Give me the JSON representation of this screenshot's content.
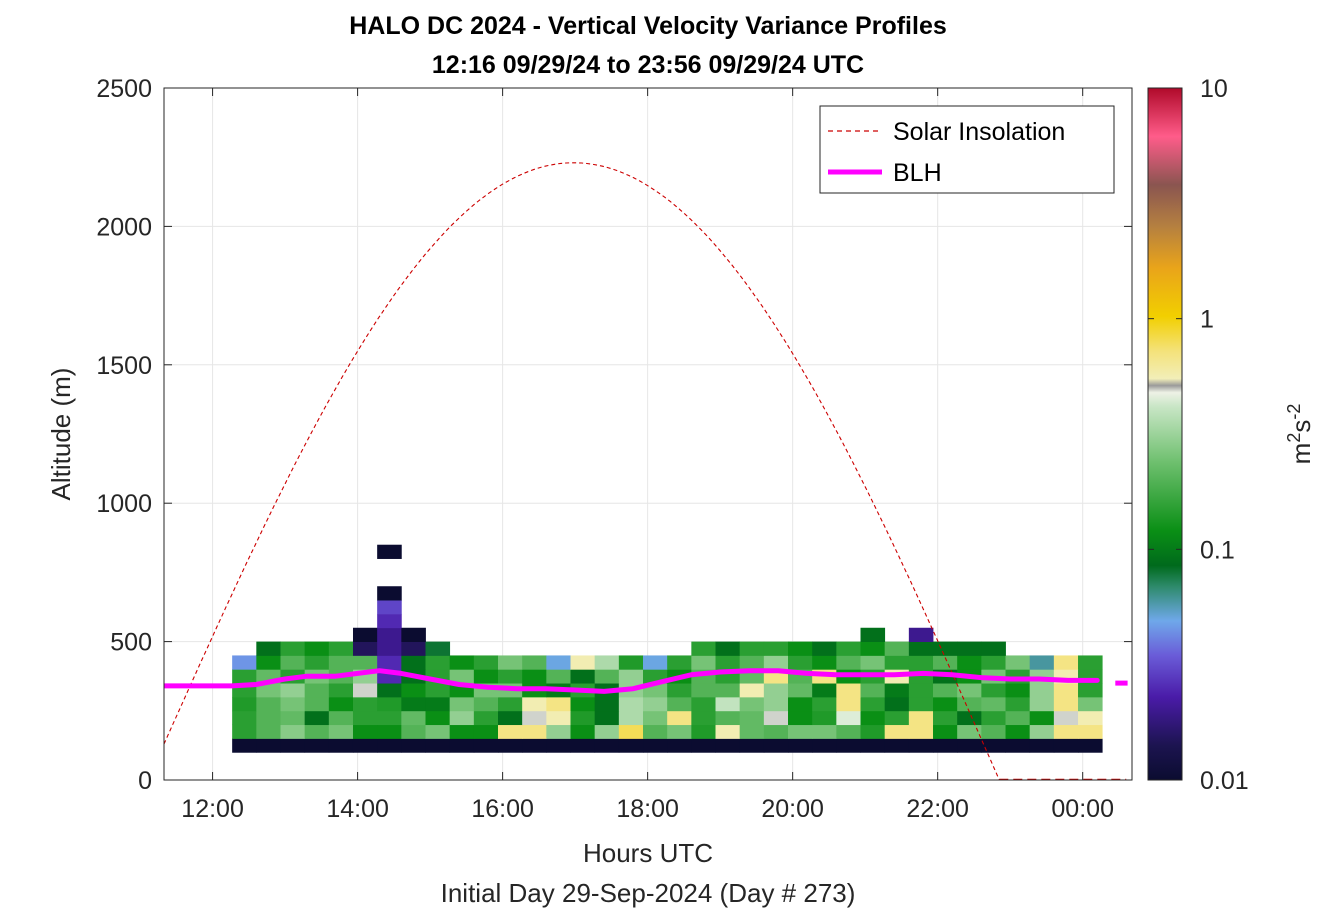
{
  "chart_data": {
    "type": "heatmap",
    "title": "HALO DC 2024 - Vertical Velocity Variance Profiles",
    "subtitle": "12:16 09/29/24 to 23:56 09/29/24  UTC",
    "xlabel": "Hours UTC",
    "footer": "Initial Day 29-Sep-2024 (Day # 273)",
    "ylabel": "Altitude (m)",
    "xlim": [
      11.33,
      24.68
    ],
    "ylim": [
      0,
      2500
    ],
    "x_ticks": [
      {
        "value": 12,
        "label": "12:00"
      },
      {
        "value": 14,
        "label": "14:00"
      },
      {
        "value": 16,
        "label": "16:00"
      },
      {
        "value": 18,
        "label": "18:00"
      },
      {
        "value": 20,
        "label": "20:00"
      },
      {
        "value": 22,
        "label": "22:00"
      },
      {
        "value": 24,
        "label": "00:00"
      }
    ],
    "y_ticks": [
      {
        "value": 0,
        "label": "0"
      },
      {
        "value": 500,
        "label": "500"
      },
      {
        "value": 1000,
        "label": "1000"
      },
      {
        "value": 1500,
        "label": "1500"
      },
      {
        "value": 2000,
        "label": "2000"
      },
      {
        "value": 2500,
        "label": "2500"
      }
    ],
    "grid": true,
    "legend": {
      "placement": "top-right",
      "entries": [
        "Solar Insolation",
        "BLH"
      ]
    },
    "colorbar": {
      "label_base": "m",
      "label_sup1": "2",
      "label_mid": "s",
      "label_sup2": "-2",
      "scale": "log",
      "range": [
        0.01,
        10
      ],
      "ticks": [
        {
          "value": 0.01,
          "label": "0.01"
        },
        {
          "value": 0.1,
          "label": "0.1"
        },
        {
          "value": 1,
          "label": "1"
        },
        {
          "value": 10,
          "label": "10"
        }
      ]
    },
    "heatmap": {
      "t_start": 12.27,
      "t_step": 0.3333,
      "alt_start": 100,
      "alt_step": 50,
      "bottom_row_note": "lowest gate 100-150 m",
      "rows": [
        [
          0.01,
          0.01,
          0.01,
          0.01,
          0.01,
          0.01,
          0.01,
          0.01,
          0.01,
          0.01,
          0.01,
          0.01,
          0.01,
          0.01,
          0.01,
          0.01,
          0.01,
          0.01,
          0.01,
          0.01,
          0.01,
          0.01,
          0.01,
          0.01,
          0.01,
          0.01,
          0.01,
          0.01,
          0.01,
          0.01,
          0.01,
          0.01,
          0.01,
          0.01,
          0.01,
          0.01
        ],
        [
          0.15,
          0.2,
          0.28,
          0.2,
          0.25,
          0.12,
          0.12,
          0.2,
          0.25,
          0.12,
          0.12,
          0.7,
          0.7,
          0.3,
          0.12,
          0.3,
          0.8,
          0.2,
          0.25,
          0.14,
          0.6,
          0.22,
          0.2,
          0.25,
          0.25,
          0.2,
          0.14,
          0.7,
          0.7,
          0.12,
          0.25,
          0.2,
          0.12,
          0.3,
          0.7,
          0.7
        ],
        [
          0.15,
          0.2,
          0.22,
          0.09,
          0.2,
          0.15,
          0.15,
          0.22,
          0.12,
          0.3,
          0.15,
          0.09,
          0.5,
          0.6,
          0.14,
          0.09,
          0.35,
          0.25,
          0.7,
          0.15,
          0.2,
          0.22,
          0.5,
          0.12,
          0.14,
          0.45,
          0.12,
          0.15,
          0.7,
          0.15,
          0.09,
          0.15,
          0.2,
          0.12,
          0.5,
          0.6
        ],
        [
          0.14,
          0.2,
          0.25,
          0.2,
          0.12,
          0.15,
          0.14,
          0.1,
          0.1,
          0.25,
          0.2,
          0.15,
          0.6,
          0.7,
          0.12,
          0.09,
          0.35,
          0.3,
          0.2,
          0.15,
          0.4,
          0.25,
          0.3,
          0.12,
          0.15,
          0.7,
          0.15,
          0.09,
          0.15,
          0.12,
          0.2,
          0.22,
          0.15,
          0.3,
          0.7,
          0.25
        ],
        [
          0.15,
          0.25,
          0.3,
          0.2,
          0.15,
          0.5,
          0.09,
          0.12,
          0.15,
          0.12,
          0.25,
          0.25,
          0.12,
          0.1,
          0.15,
          0.09,
          0.3,
          0.25,
          0.15,
          0.2,
          0.2,
          0.6,
          0.3,
          0.22,
          0.1,
          0.7,
          0.2,
          0.1,
          0.15,
          0.2,
          0.25,
          0.15,
          0.12,
          0.3,
          0.7,
          0.15
        ],
        [
          0.15,
          0.22,
          0.15,
          0.25,
          0.2,
          0.3,
          0.025,
          0.09,
          0.15,
          0.25,
          0.12,
          0.15,
          0.12,
          0.2,
          0.09,
          0.2,
          0.3,
          0.15,
          0.12,
          0.2,
          0.15,
          0.22,
          0.7,
          0.2,
          0.7,
          0.12,
          0.15,
          0.6,
          0.15,
          0.09,
          0.12,
          0.25,
          0.15,
          0.3,
          0.6,
          0.15
        ],
        [
          0.045,
          0.12,
          0.2,
          0.15,
          0.2,
          0.2,
          0.025,
          0.09,
          0.15,
          0.12,
          0.15,
          0.25,
          0.2,
          0.05,
          0.6,
          0.35,
          0.14,
          0.05,
          0.15,
          0.25,
          0.15,
          0.2,
          0.3,
          0.15,
          0.12,
          0.2,
          0.25,
          0.15,
          0.15,
          0.2,
          0.12,
          0.15,
          0.25,
          0.06,
          0.7,
          0.15
        ],
        [
          null,
          0.09,
          0.15,
          0.12,
          0.15,
          0.015,
          0.02,
          0.015,
          0.08,
          null,
          null,
          null,
          null,
          null,
          null,
          null,
          null,
          null,
          null,
          0.15,
          0.09,
          0.15,
          0.15,
          0.12,
          0.09,
          0.15,
          0.12,
          0.2,
          0.09,
          0.09,
          0.09,
          0.09,
          null,
          null,
          null,
          null
        ],
        [
          null,
          null,
          null,
          null,
          null,
          0.01,
          0.02,
          0.01,
          null,
          null,
          null,
          null,
          null,
          null,
          null,
          null,
          null,
          null,
          null,
          null,
          null,
          null,
          null,
          null,
          null,
          null,
          0.09,
          null,
          0.02,
          null,
          null,
          null,
          null,
          null,
          null,
          null
        ],
        [
          null,
          null,
          null,
          null,
          null,
          null,
          0.025,
          null,
          null,
          null,
          null,
          null,
          null,
          null,
          null,
          null,
          null,
          null,
          null,
          null,
          null,
          null,
          null,
          null,
          null,
          null,
          null,
          null,
          null,
          null,
          null,
          null,
          null,
          null,
          null,
          null
        ],
        [
          null,
          null,
          null,
          null,
          null,
          null,
          0.03,
          null,
          null,
          null,
          null,
          null,
          null,
          null,
          null,
          null,
          null,
          null,
          null,
          null,
          null,
          null,
          null,
          null,
          null,
          null,
          null,
          null,
          null,
          null,
          null,
          null,
          null,
          null,
          null,
          null
        ],
        [
          null,
          null,
          null,
          null,
          null,
          null,
          0.01,
          null,
          null,
          null,
          null,
          null,
          null,
          null,
          null,
          null,
          null,
          null,
          null,
          null,
          null,
          null,
          null,
          null,
          null,
          null,
          null,
          null,
          null,
          null,
          null,
          null,
          null,
          null,
          null,
          null
        ],
        [
          null,
          null,
          null,
          null,
          null,
          null,
          null,
          null,
          null,
          null,
          null,
          null,
          null,
          null,
          null,
          null,
          null,
          null,
          null,
          null,
          null,
          null,
          null,
          null,
          null,
          null,
          null,
          null,
          null,
          null,
          null,
          null,
          null,
          null,
          null,
          null
        ],
        [
          null,
          null,
          null,
          null,
          null,
          null,
          null,
          null,
          null,
          null,
          null,
          null,
          null,
          null,
          null,
          null,
          null,
          null,
          null,
          null,
          null,
          null,
          null,
          null,
          null,
          null,
          null,
          null,
          null,
          null,
          null,
          null,
          null,
          null,
          null,
          null
        ],
        [
          null,
          null,
          null,
          null,
          null,
          null,
          0.01,
          null,
          null,
          null,
          null,
          null,
          null,
          null,
          null,
          null,
          null,
          null,
          null,
          null,
          null,
          null,
          null,
          null,
          null,
          null,
          null,
          null,
          null,
          null,
          null,
          null,
          null,
          null,
          null,
          null
        ]
      ]
    },
    "series": [
      {
        "name": "BLH",
        "color": "#ff00ff",
        "style": "solid",
        "x": [
          11.33,
          12.27,
          12.6,
          13.0,
          13.3,
          13.7,
          14.0,
          14.3,
          14.6,
          15.0,
          15.4,
          15.8,
          16.2,
          16.6,
          17.0,
          17.4,
          17.8,
          18.2,
          18.6,
          19.0,
          19.4,
          19.8,
          20.2,
          20.6,
          21.0,
          21.4,
          21.8,
          22.2,
          22.6,
          23.0,
          23.4,
          23.8,
          24.2
        ],
        "y": [
          340,
          340,
          345,
          365,
          375,
          375,
          385,
          395,
          385,
          365,
          345,
          335,
          330,
          330,
          325,
          320,
          330,
          355,
          380,
          390,
          395,
          395,
          385,
          380,
          380,
          380,
          385,
          380,
          370,
          365,
          365,
          360,
          360
        ],
        "extra_segment": {
          "x": [
            24.45,
            24.62
          ],
          "y": [
            350,
            350
          ]
        }
      },
      {
        "name": "Solar Insolation",
        "color": "#cc0000",
        "style": "dashed",
        "curve": {
          "rise": 11.33,
          "noon": 16.98,
          "set": 22.85,
          "peak": 2230,
          "start_value": 130
        },
        "x_zero": [
          22.85,
          24.6
        ],
        "y_zero": [
          0,
          0
        ]
      }
    ]
  }
}
